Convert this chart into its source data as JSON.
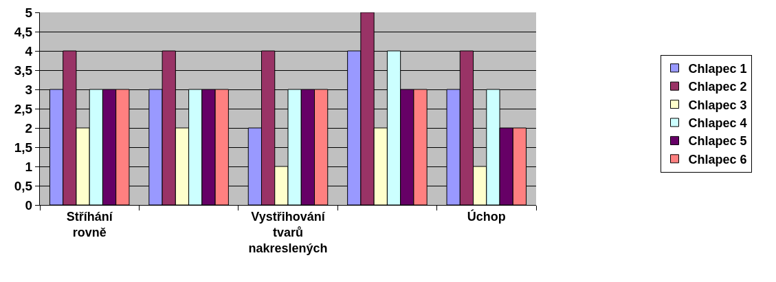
{
  "chart_data": {
    "type": "bar",
    "categories": [
      "Stříhání rovně",
      null,
      "Vystřihování tvarů nakreslených",
      null,
      "Úchop"
    ],
    "series": [
      {
        "name": "Chlapec 1",
        "color": "#9999ff",
        "values": [
          3,
          3,
          2,
          4,
          3
        ]
      },
      {
        "name": "Chlapec 2",
        "color": "#993366",
        "values": [
          4,
          4,
          4,
          5,
          4
        ]
      },
      {
        "name": "Chlapec 3",
        "color": "#ffffcc",
        "values": [
          2,
          2,
          1,
          2,
          1
        ]
      },
      {
        "name": "Chlapec 4",
        "color": "#ccffff",
        "values": [
          3,
          3,
          3,
          4,
          3
        ]
      },
      {
        "name": "Chlapec 5",
        "color": "#660066",
        "values": [
          3,
          3,
          3,
          3,
          2
        ]
      },
      {
        "name": "Chlapec 6",
        "color": "#ff8080",
        "values": [
          3,
          3,
          3,
          3,
          2
        ]
      }
    ],
    "ylim": [
      0,
      5
    ],
    "yticks": [
      0,
      {
        "value": 0.5,
        "label": "0,5"
      },
      1,
      {
        "value": 1.5,
        "label": "1,5"
      },
      2,
      {
        "value": 2.5,
        "label": "2,5"
      },
      3,
      {
        "value": 3.5,
        "label": "3,5"
      },
      4,
      {
        "value": 4.5,
        "label": "4,5"
      },
      5
    ],
    "grid": "y",
    "legend": "right"
  }
}
